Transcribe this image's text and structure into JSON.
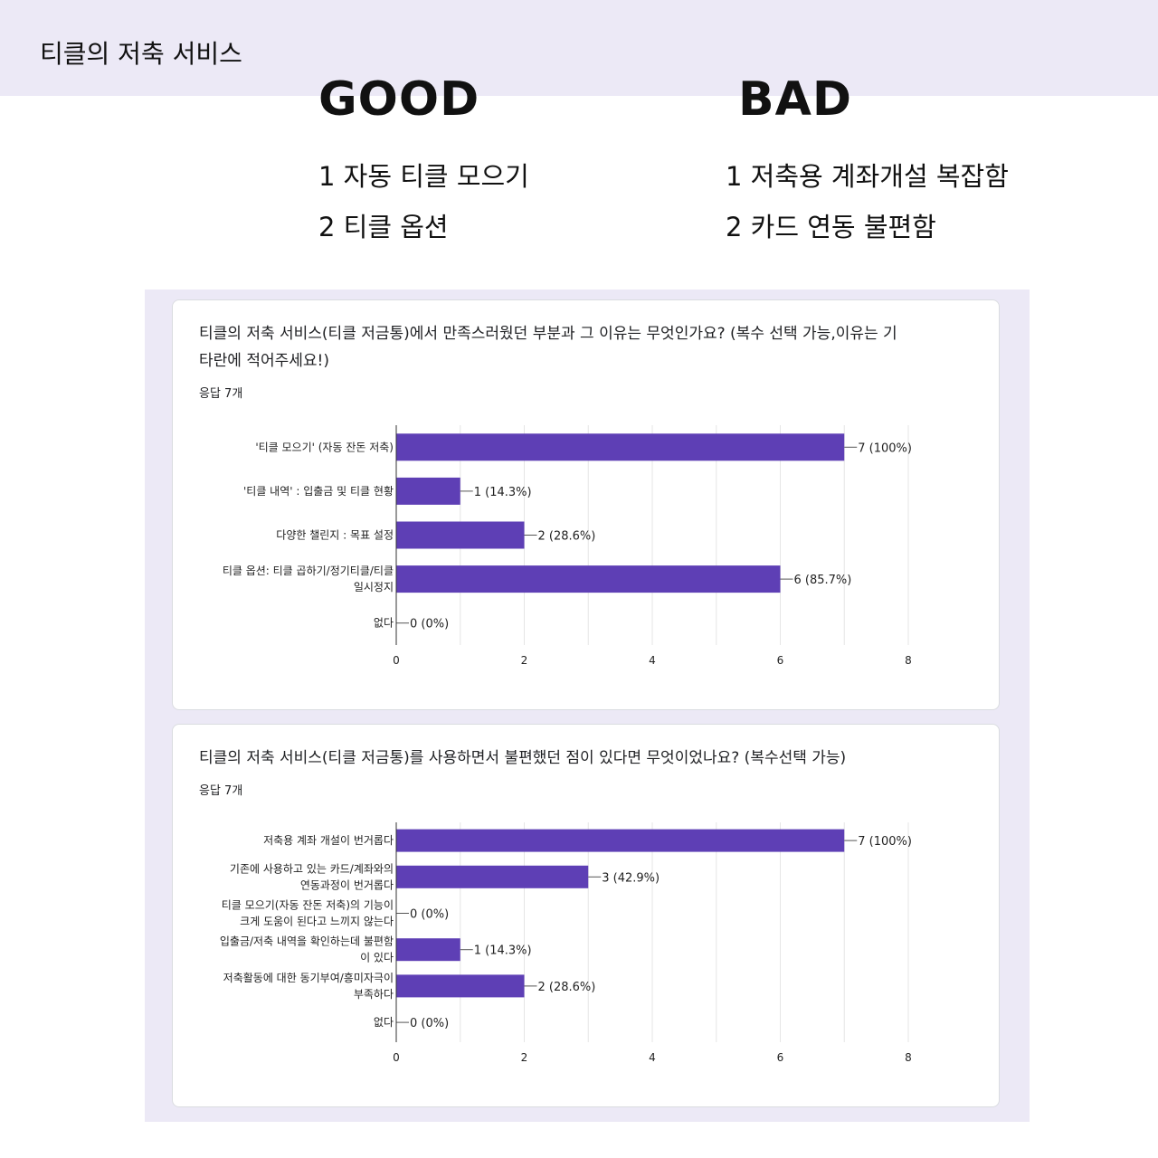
{
  "header": {
    "title": "티클의 저축 서비스"
  },
  "good": {
    "heading": "GOOD",
    "points": [
      "1 자동 티클 모으기",
      "2 티클 옵션"
    ]
  },
  "bad": {
    "heading": "BAD",
    "points": [
      "1 저축용 계좌개설 복잡함",
      "2 카드 연동 불편함"
    ]
  },
  "colors": {
    "bar": "#5e3fb5",
    "panel": "#ece9f6",
    "grid": "#e6e6e6"
  },
  "survey": [
    {
      "question_lines": [
        "티클의 저축 서비스(티클 저금통)에서 만족스러웠던 부분과 그 이유는 무엇인가요? (복수 선택 가능,이유는 기",
        "타란에 적어주세요!)"
      ],
      "responses": "응답 7개"
    },
    {
      "question_lines": [
        "티클의 저축 서비스(티클 저금통)를 사용하면서 불편했던 점이 있다면 무엇이었나요? (복수선택 가능)"
      ],
      "responses": "응답 7개"
    }
  ],
  "chart_data": [
    {
      "type": "bar",
      "orientation": "horizontal",
      "categories": [
        [
          "'티클 모으기' (자동 잔돈 저축)"
        ],
        [
          "'티클 내역' : 입출금 및 티클 현황"
        ],
        [
          "다양한 챌린지 : 목표 설정"
        ],
        [
          "티클 옵션: 티클 곱하기/정기티클/티클",
          "일시정지"
        ],
        [
          "없다"
        ]
      ],
      "values": [
        7,
        1,
        2,
        6,
        0
      ],
      "data_labels": [
        "7 (100%)",
        "1 (14.3%)",
        "2 (28.6%)",
        "6 (85.7%)",
        "0 (0%)"
      ],
      "xlim": [
        0,
        8
      ],
      "xticks": [
        "0",
        "2",
        "4",
        "6",
        "8"
      ],
      "grid": true
    },
    {
      "type": "bar",
      "orientation": "horizontal",
      "categories": [
        [
          "저축용 계좌 개설이 번거롭다"
        ],
        [
          "기존에 사용하고 있는 카드/계좌와의",
          "연동과정이 번거롭다"
        ],
        [
          "티클 모으기(자동 잔돈 저축)의 기능이",
          "크게 도움이 된다고 느끼지 않는다"
        ],
        [
          "입출금/저축 내역을 확인하는데 불편함",
          "이 있다"
        ],
        [
          "저축활동에 대한 동기부여/흥미자극이",
          "부족하다"
        ],
        [
          "없다"
        ]
      ],
      "values": [
        7,
        3,
        0,
        1,
        2,
        0
      ],
      "data_labels": [
        "7 (100%)",
        "3 (42.9%)",
        "0 (0%)",
        "1 (14.3%)",
        "2 (28.6%)",
        "0 (0%)"
      ],
      "xlim": [
        0,
        8
      ],
      "xticks": [
        "0",
        "2",
        "4",
        "6",
        "8"
      ],
      "grid": true
    }
  ]
}
